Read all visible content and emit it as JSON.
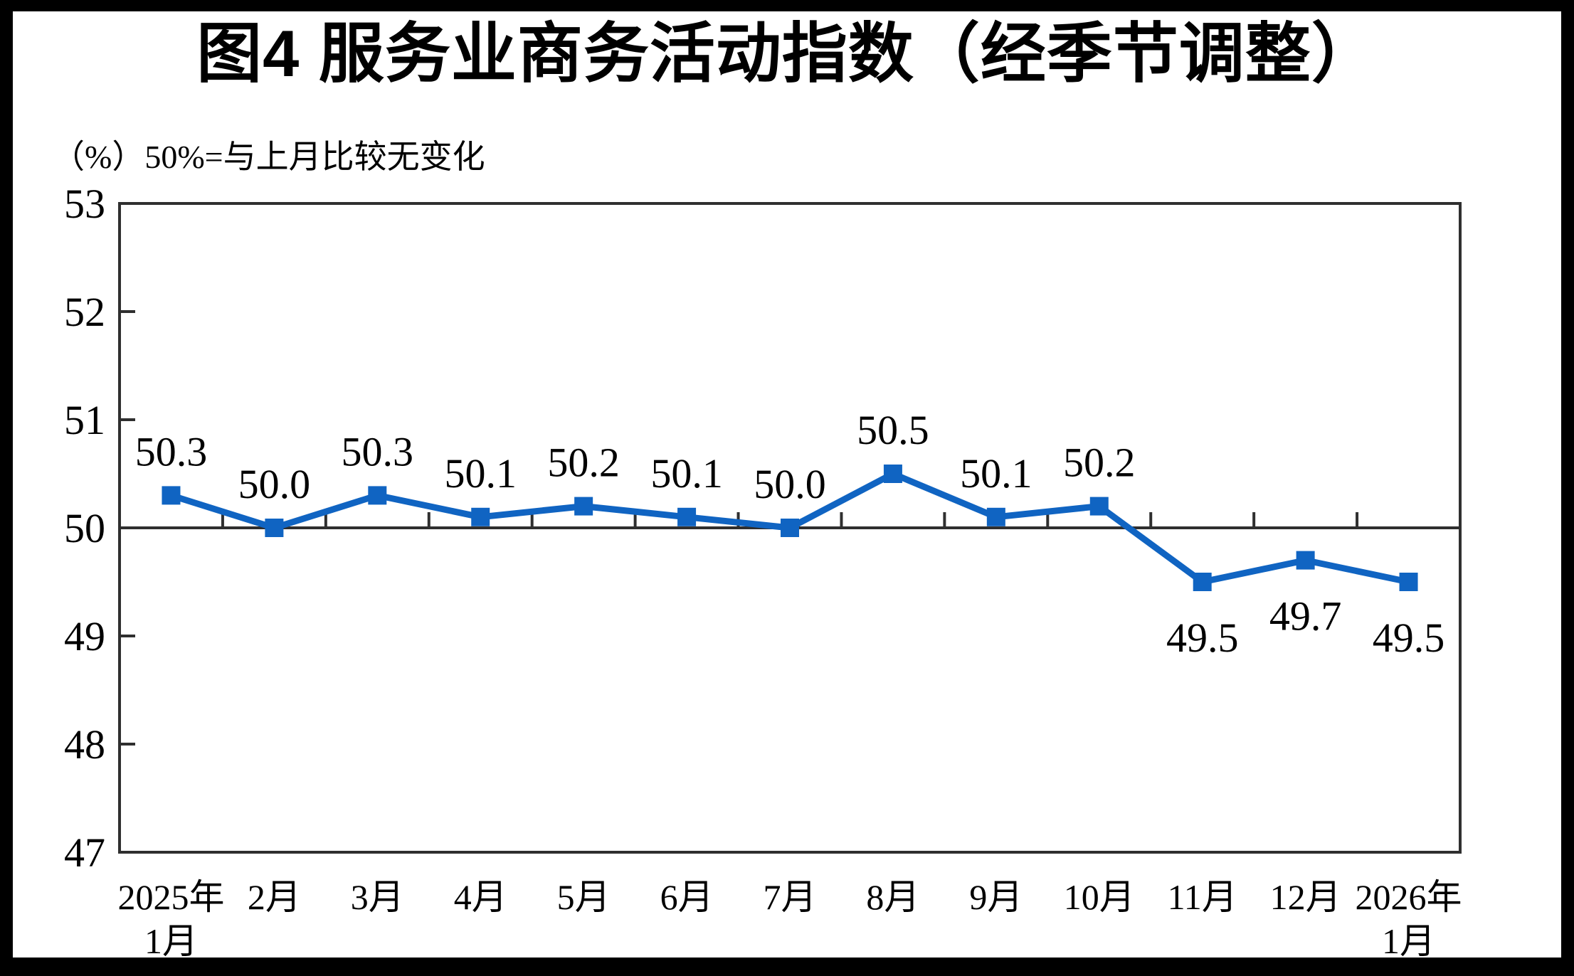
{
  "page": {
    "title": "图4 服务业商务活动指数（经季节调整）",
    "subtitle": "（%）50%=与上月比较无变化"
  },
  "chart_data": {
    "type": "line",
    "title": "图4 服务业商务活动指数（经季节调整）",
    "subtitle_note": "（%）50%=与上月比较无变化",
    "unit": "%",
    "categories": [
      [
        "2025年",
        "1月"
      ],
      [
        "2月"
      ],
      [
        "3月"
      ],
      [
        "4月"
      ],
      [
        "5月"
      ],
      [
        "6月"
      ],
      [
        "7月"
      ],
      [
        "8月"
      ],
      [
        "9月"
      ],
      [
        "10月"
      ],
      [
        "11月"
      ],
      [
        "12月"
      ],
      [
        "2026年",
        "1月"
      ]
    ],
    "values": [
      50.3,
      50.0,
      50.3,
      50.1,
      50.2,
      50.1,
      50.0,
      50.5,
      50.1,
      50.2,
      49.5,
      49.7,
      49.5
    ],
    "data_labels": [
      "50.3",
      "50.0",
      "50.3",
      "50.1",
      "50.2",
      "50.1",
      "50.0",
      "50.5",
      "50.1",
      "50.2",
      "49.5",
      "49.7",
      "49.5"
    ],
    "ylim": [
      47,
      53
    ],
    "yticks": [
      47,
      48,
      49,
      50,
      51,
      52,
      53
    ],
    "reference_line": 50,
    "label_below_when_under": 50,
    "grid": false,
    "legend_position": "none",
    "marker": "square",
    "colors": {
      "line": "#1064C2",
      "marker": "#1064C2",
      "axis": "#2F2F2F",
      "text": "#000000",
      "page_background": "#FFFFFF",
      "frame_background": "#000000"
    }
  }
}
